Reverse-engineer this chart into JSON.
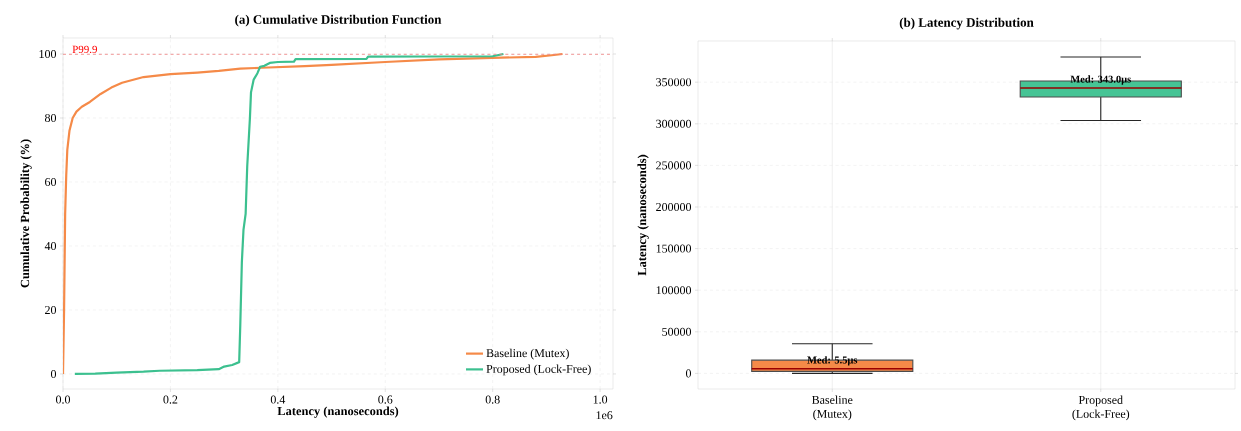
{
  "chart_data": [
    {
      "type": "line",
      "title": "(a) Cumulative Distribution Function",
      "xlabel": "Latency (nanoseconds)",
      "ylabel": "Cumulative Probability (%)",
      "xlim": [
        0,
        1.024
      ],
      "ylim": [
        -4.7,
        105
      ],
      "xticks": [
        {
          "value": 0,
          "label": "0.0"
        },
        0.2,
        0.4,
        0.6,
        0.8,
        {
          "value": 1,
          "label": "1.0"
        }
      ],
      "yticks": [
        0,
        20,
        40,
        60,
        80,
        100
      ],
      "grid": true,
      "legend": "bottom right",
      "ref_lines": [
        {
          "axis": "y",
          "value": 99.9,
          "label": "P99.9",
          "color": "#f08080",
          "line_style": "dashed"
        }
      ],
      "annotations": [
        "1e6"
      ],
      "series": [
        {
          "name": "Baseline (Mutex)",
          "color": "#f58a48",
          "x": [
            0,
            0.002,
            0.004,
            0.006,
            0.008,
            0.012,
            0.018,
            0.025,
            0.035,
            0.05,
            0.07,
            0.09,
            0.11,
            0.15,
            0.2,
            0.25,
            0.29,
            0.33,
            0.37,
            0.45,
            0.5,
            0.6,
            0.7,
            0.8,
            0.88,
            0.91,
            0.93
          ],
          "values": [
            0,
            20,
            50,
            62,
            70,
            76,
            80,
            82,
            83.5,
            85,
            87.5,
            89.5,
            91,
            92.8,
            93.7,
            94.2,
            94.7,
            95.4,
            95.7,
            96.2,
            96.6,
            97.5,
            98.3,
            98.8,
            99.1,
            99.6,
            100
          ]
        },
        {
          "name": "Proposed (Lock-Free)",
          "color": "#3cc08f",
          "x": [
            0.022,
            0.06,
            0.1,
            0.15,
            0.18,
            0.25,
            0.29,
            0.3,
            0.315,
            0.328,
            0.33,
            0.333,
            0.336,
            0.34,
            0.343,
            0.348,
            0.35,
            0.355,
            0.362,
            0.367,
            0.375,
            0.385,
            0.4,
            0.43,
            0.433,
            0.565,
            0.568,
            0.8,
            0.82
          ],
          "values": [
            0,
            0.1,
            0.4,
            0.7,
            1,
            1.2,
            1.5,
            2.3,
            2.8,
            3.7,
            15,
            35,
            45,
            50,
            65,
            80,
            88,
            92,
            94,
            96,
            96.3,
            97.2,
            97.5,
            97.6,
            98.4,
            98.5,
            99.2,
            99.3,
            100
          ]
        }
      ]
    },
    {
      "type": "box",
      "title": "(b) Latency Distribution",
      "ylabel": "Latency (nanoseconds)",
      "categories": [
        "Baseline (Mutex)",
        "Proposed (Lock-Free)"
      ],
      "ylim": [
        -18750,
        399500
      ],
      "yticks": [
        0,
        50000,
        100000,
        150000,
        200000,
        250000,
        300000,
        350000
      ],
      "grid": true,
      "colors": [
        "#f58a48",
        "#46c495"
      ],
      "boxes": [
        {
          "low": 0,
          "q1": 2400,
          "median": 5500,
          "q3": 15900,
          "high": 35600
        },
        {
          "low": 303900,
          "q1": 332200,
          "median": 343000,
          "q3": 351500,
          "high": 380300
        }
      ],
      "annotations": [
        {
          "text": "Med: 5.5μs",
          "x": "Baseline (Mutex)",
          "y": 5500
        },
        {
          "text": "Med: 343.0μs",
          "x": "Proposed (Lock-Free)",
          "y": 343000
        }
      ]
    }
  ]
}
